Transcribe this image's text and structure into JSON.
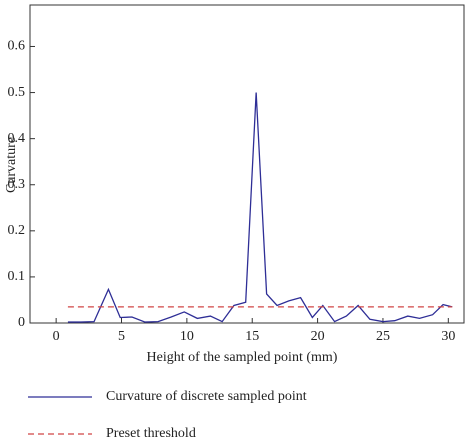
{
  "chart_data": {
    "type": "line",
    "x_label": "Height of the sampled point (mm)",
    "y_label": "Curvature",
    "xlim": [
      -2,
      31.2
    ],
    "ylim": [
      0,
      0.69
    ],
    "xticks": [
      0,
      5,
      10,
      15,
      20,
      25,
      30
    ],
    "yticks": [
      0,
      0.1,
      0.2,
      0.3,
      0.4,
      0.5,
      0.6
    ],
    "series": [
      {
        "name": "Curvature of discrete sampled point",
        "color": "#2e2e96",
        "dash": false,
        "x": [
          0.9,
          1.9,
          2.9,
          4.0,
          4.9,
          5.8,
          6.8,
          7.8,
          8.8,
          9.8,
          10.8,
          11.8,
          12.7,
          13.6,
          14.5,
          15.3,
          16.1,
          16.9,
          17.8,
          18.7,
          19.6,
          20.4,
          21.3,
          22.2,
          23.1,
          24.0,
          25.0,
          25.9,
          26.9,
          27.8,
          28.8,
          29.6,
          30.3
        ],
        "values": [
          0.002,
          0.002,
          0.003,
          0.073,
          0.012,
          0.013,
          0.002,
          0.003,
          0.013,
          0.024,
          0.01,
          0.015,
          0.003,
          0.038,
          0.045,
          0.5,
          0.063,
          0.038,
          0.048,
          0.055,
          0.012,
          0.038,
          0.003,
          0.015,
          0.038,
          0.008,
          0.003,
          0.005,
          0.015,
          0.01,
          0.018,
          0.04,
          0.035
        ]
      },
      {
        "name": "Preset threshold",
        "color": "#d04545",
        "dash": true,
        "x": [
          0.9,
          30.3
        ],
        "values": [
          0.035,
          0.035
        ]
      }
    ]
  }
}
